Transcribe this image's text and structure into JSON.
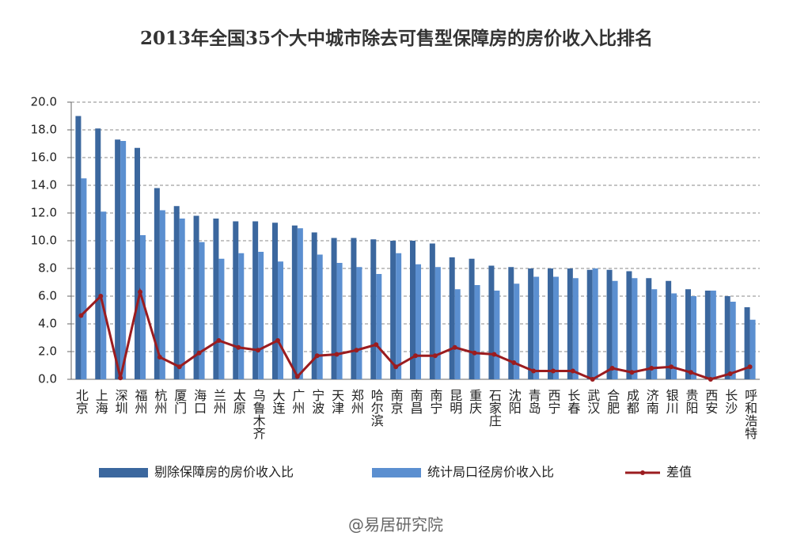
{
  "chart_data": {
    "type": "bar_line",
    "title": "2013年全国35个大中城市除去可售型保障房的房价收入比排名",
    "categories": [
      "北京",
      "上海",
      "深圳",
      "福州",
      "杭州",
      "厦门",
      "海口",
      "兰州",
      "太原",
      "乌鲁木齐",
      "大连",
      "广州",
      "宁波",
      "天津",
      "郑州",
      "哈尔滨",
      "南京",
      "南昌",
      "南宁",
      "昆明",
      "重庆",
      "石家庄",
      "沈阳",
      "青岛",
      "西宁",
      "长春",
      "武汉",
      "合肥",
      "成都",
      "济南",
      "银川",
      "贵阳",
      "西安",
      "长沙",
      "呼和浩特"
    ],
    "series": [
      {
        "name": "剔除保障房的房价收入比",
        "color": "#3b679e",
        "kind": "bar",
        "values": [
          19.0,
          18.1,
          17.3,
          16.7,
          13.8,
          12.5,
          11.8,
          11.6,
          11.4,
          11.4,
          11.3,
          11.1,
          10.6,
          10.2,
          10.2,
          10.1,
          10.0,
          10.0,
          9.8,
          8.8,
          8.7,
          8.2,
          8.1,
          8.0,
          8.0,
          8.0,
          7.9,
          7.9,
          7.8,
          7.3,
          7.1,
          6.5,
          6.4,
          6.0,
          5.2
        ]
      },
      {
        "name": "统计局口径房价收入比",
        "color": "#5b8fd0",
        "kind": "bar",
        "values": [
          14.5,
          12.1,
          17.2,
          10.4,
          12.2,
          11.6,
          9.9,
          8.7,
          9.1,
          9.2,
          8.5,
          10.9,
          9.0,
          8.4,
          8.1,
          7.6,
          9.1,
          8.3,
          8.1,
          6.5,
          6.8,
          6.4,
          6.9,
          7.4,
          7.4,
          7.3,
          8.0,
          7.1,
          7.3,
          6.5,
          6.2,
          6.0,
          6.4,
          5.6,
          4.3
        ]
      },
      {
        "name": "差值",
        "color": "#9b1c1f",
        "kind": "line",
        "values": [
          4.6,
          6.0,
          0.1,
          6.3,
          1.6,
          0.9,
          1.9,
          2.8,
          2.3,
          2.1,
          2.8,
          0.2,
          1.7,
          1.8,
          2.1,
          2.5,
          0.9,
          1.7,
          1.7,
          2.3,
          1.9,
          1.8,
          1.2,
          0.6,
          0.6,
          0.6,
          0.0,
          0.8,
          0.5,
          0.8,
          0.9,
          0.5,
          0.0,
          0.4,
          0.9
        ]
      }
    ],
    "ylim": [
      0,
      20
    ],
    "yticks": [
      {
        "value": 0,
        "label": "0.0"
      },
      {
        "value": 2,
        "label": "2.0"
      },
      {
        "value": 4,
        "label": "4.0"
      },
      {
        "value": 6,
        "label": "6.0"
      },
      {
        "value": 8,
        "label": "8.0"
      },
      {
        "value": 10,
        "label": "10.0"
      },
      {
        "value": 12,
        "label": "12.0"
      },
      {
        "value": 14,
        "label": "14.0"
      },
      {
        "value": 16,
        "label": "16.0"
      },
      {
        "value": 18,
        "label": "18.0"
      },
      {
        "value": 20,
        "label": "20.0"
      }
    ],
    "grid": true,
    "source": "@易居研究院"
  }
}
